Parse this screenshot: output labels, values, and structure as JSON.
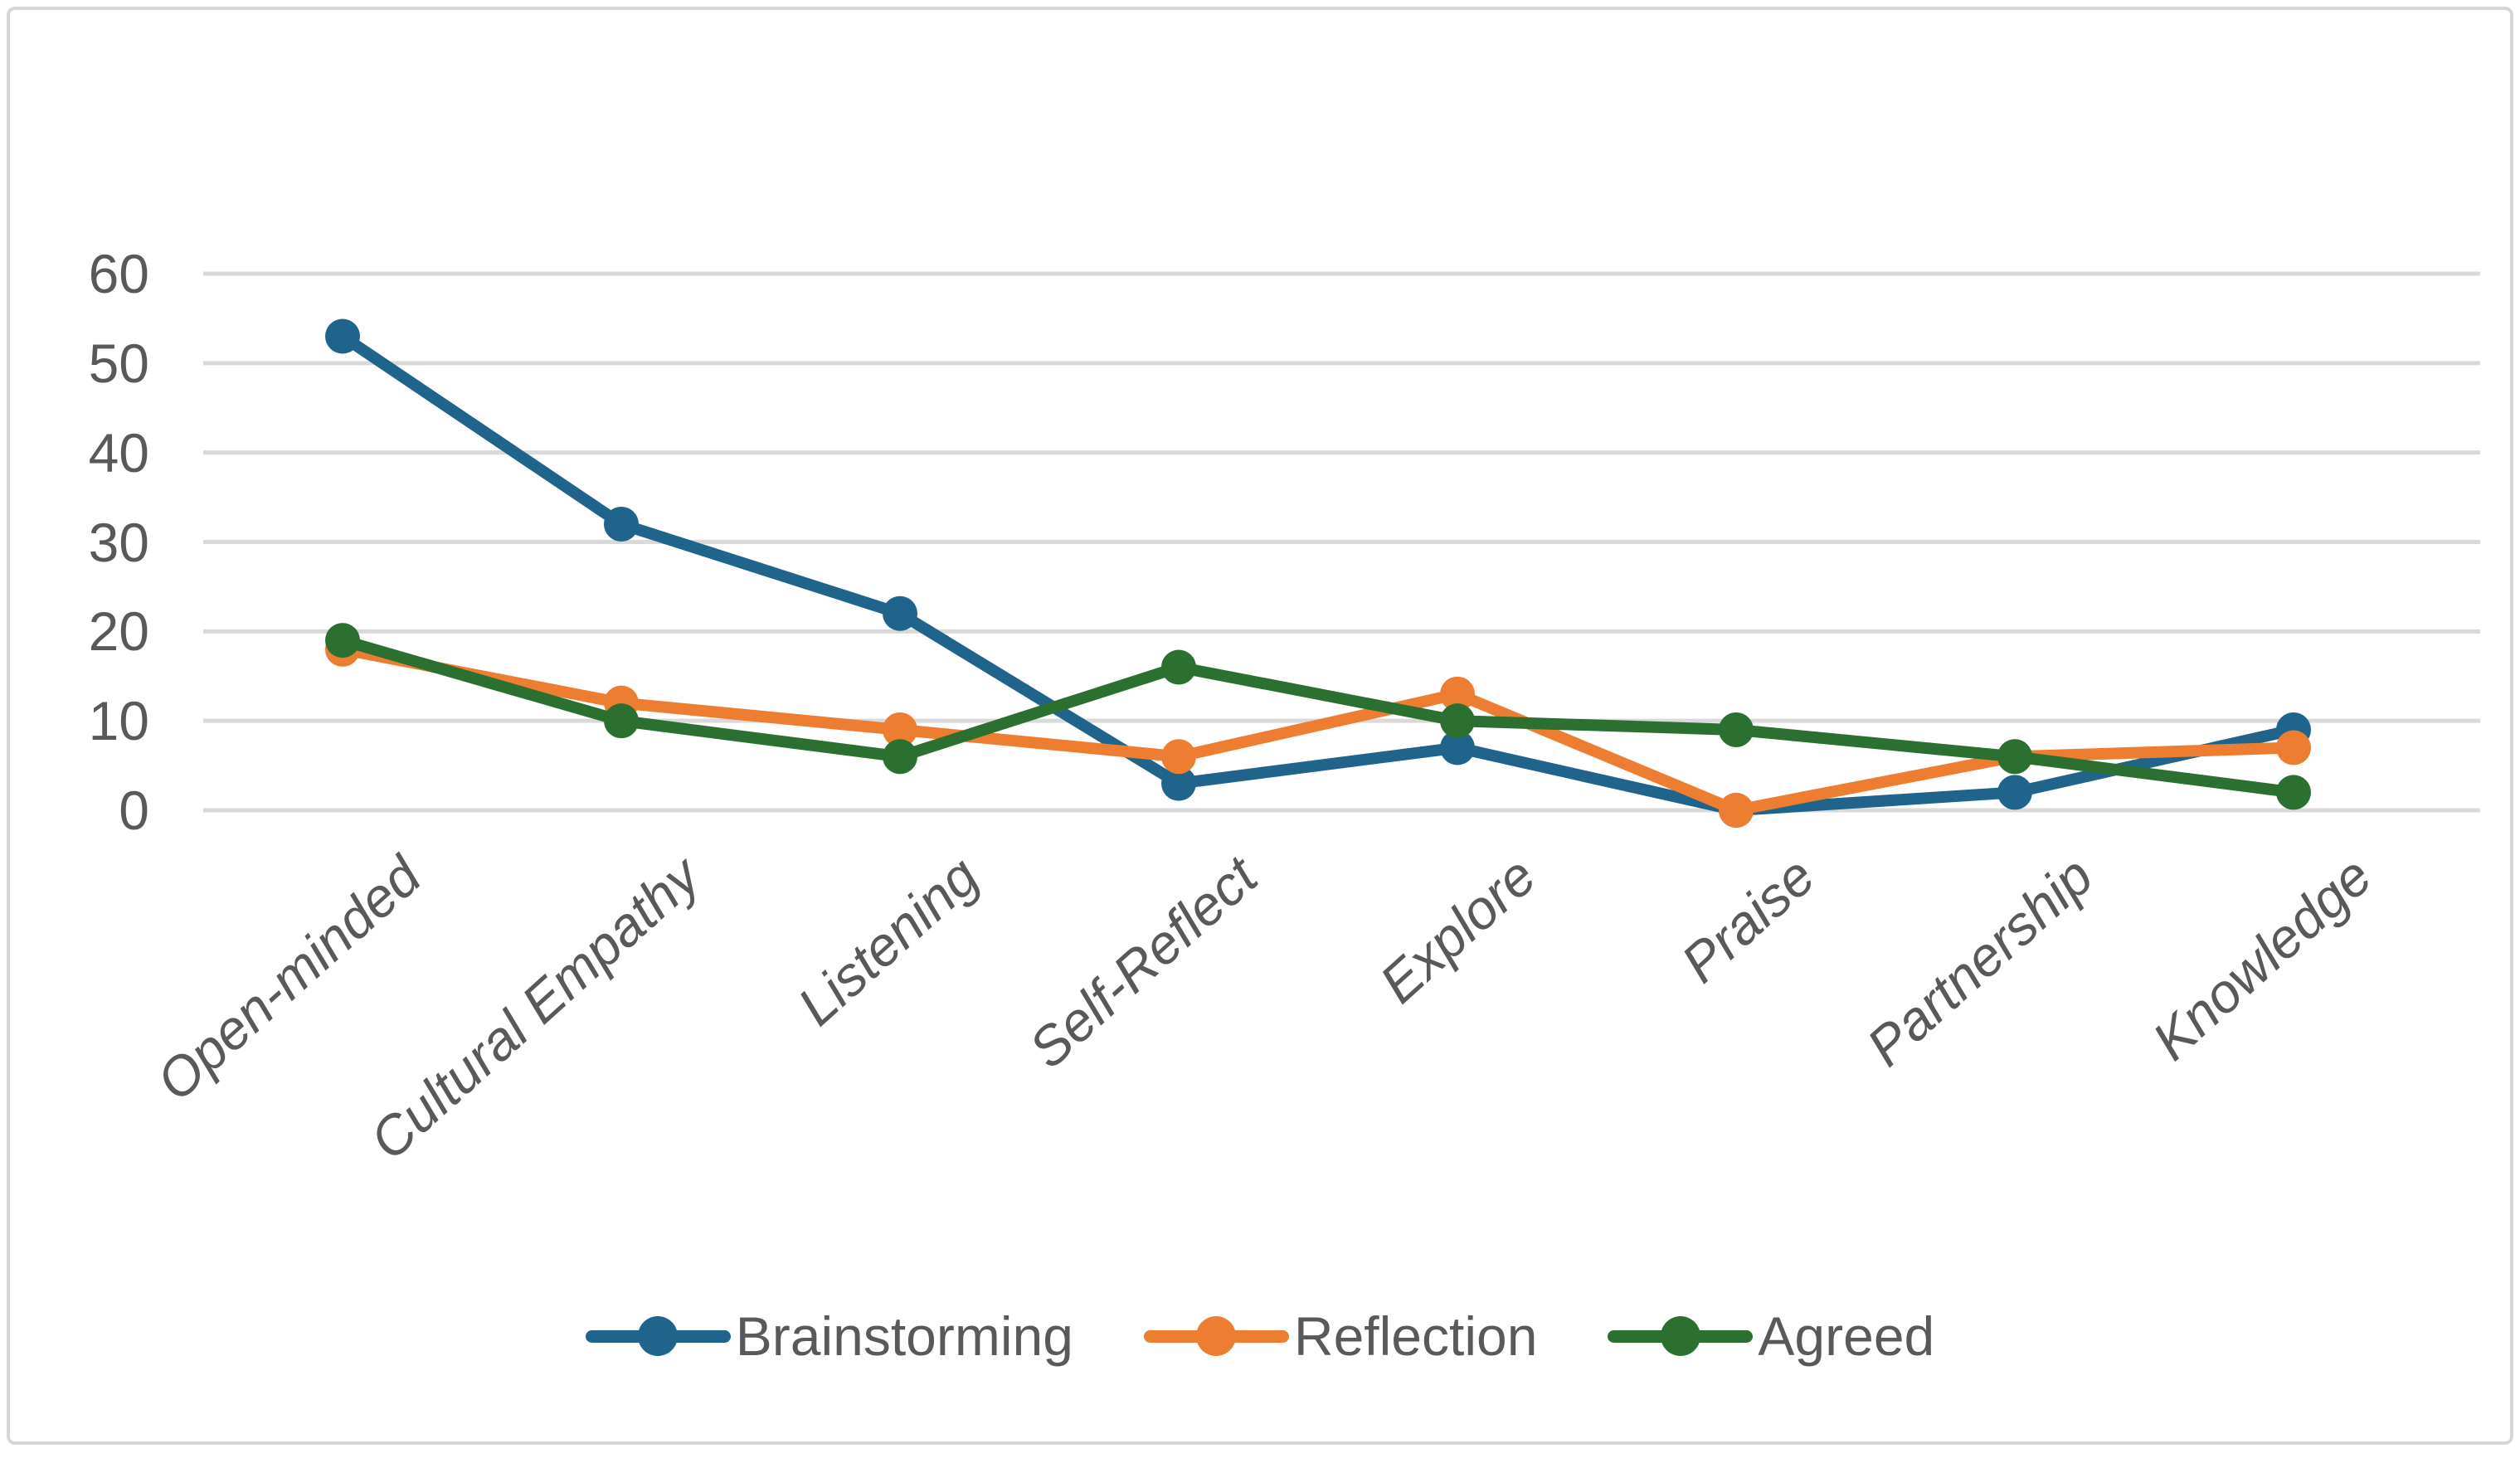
{
  "chart_data": {
    "type": "line",
    "title": "",
    "xlabel": "",
    "ylabel": "",
    "categories": [
      "Open-minded",
      "Cultural Empathy",
      "Listening",
      "Self-Reflect",
      "Explore",
      "Praise",
      "Partnership",
      "Knowledge"
    ],
    "series": [
      {
        "name": "Brainstorming",
        "color": "#20648C",
        "values": [
          53,
          32,
          22,
          3,
          7,
          0,
          2,
          9
        ]
      },
      {
        "name": "Reflection",
        "color": "#EC7D31",
        "values": [
          18,
          12,
          9,
          6,
          13,
          0,
          6,
          7
        ]
      },
      {
        "name": "Agreed",
        "color": "#2C7031",
        "values": [
          19,
          10,
          6,
          16,
          10,
          9,
          6,
          2
        ]
      }
    ],
    "y_ticks": [
      0,
      10,
      20,
      30,
      40,
      50,
      60
    ],
    "ylim": [
      0,
      65
    ],
    "grid": "horizontal",
    "legend_position": "bottom"
  },
  "styles": {
    "grid_color": "#D9D9D9",
    "axis_text_color": "#595959",
    "frame_border_color": "#D6D6D6",
    "background": "#FFFFFF"
  }
}
